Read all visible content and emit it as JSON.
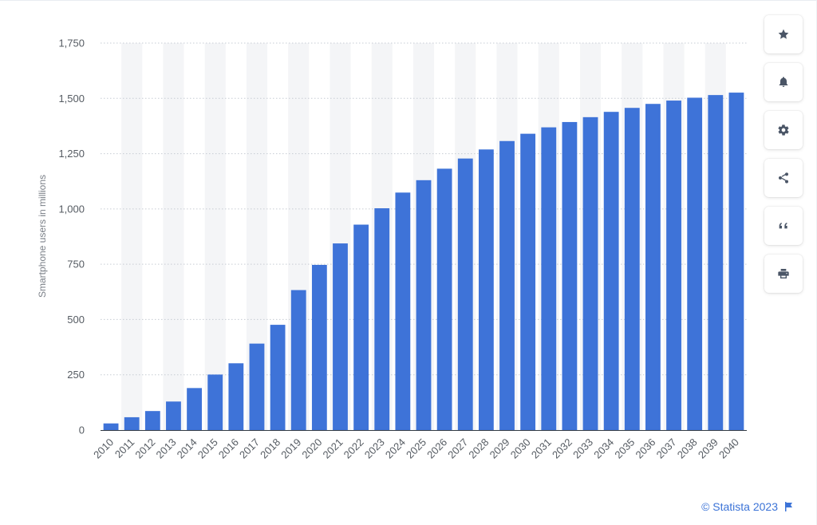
{
  "chart_data": {
    "type": "bar",
    "title": "",
    "xlabel": "",
    "ylabel": "Smartphone users in millions",
    "ylim": [
      0,
      1750
    ],
    "yticks": [
      0,
      250,
      500,
      750,
      1000,
      1250,
      1500,
      1750
    ],
    "ytick_labels": [
      "0",
      "250",
      "500",
      "750",
      "1,000",
      "1,250",
      "1,500",
      "1,750"
    ],
    "grid": true,
    "bar_color": "#3e73d8",
    "categories": [
      "2010",
      "2011",
      "2012",
      "2013",
      "2014",
      "2015",
      "2016",
      "2017",
      "2018",
      "2019",
      "2020",
      "2021",
      "2022",
      "2023",
      "2024",
      "2025",
      "2026",
      "2027",
      "2028",
      "2029",
      "2030",
      "2031",
      "2032",
      "2033",
      "2034",
      "2035",
      "2036",
      "2037",
      "2038",
      "2039",
      "2040"
    ],
    "values": [
      30,
      58,
      86,
      129,
      190,
      251,
      302,
      391,
      476,
      633,
      747,
      844,
      929,
      1003,
      1074,
      1130,
      1182,
      1228,
      1269,
      1307,
      1340,
      1369,
      1393,
      1415,
      1439,
      1457,
      1475,
      1490,
      1503,
      1515,
      1526
    ]
  },
  "toolbar": {
    "buttons": [
      {
        "name": "favorite-button",
        "icon": "star-icon"
      },
      {
        "name": "notification-button",
        "icon": "bell-icon"
      },
      {
        "name": "settings-button",
        "icon": "gear-icon"
      },
      {
        "name": "share-button",
        "icon": "share-icon"
      },
      {
        "name": "cite-button",
        "icon": "quote-icon"
      },
      {
        "name": "print-button",
        "icon": "printer-icon"
      }
    ]
  },
  "footer": {
    "credit": "© Statista 2023",
    "credit_icon": "flag-icon"
  }
}
